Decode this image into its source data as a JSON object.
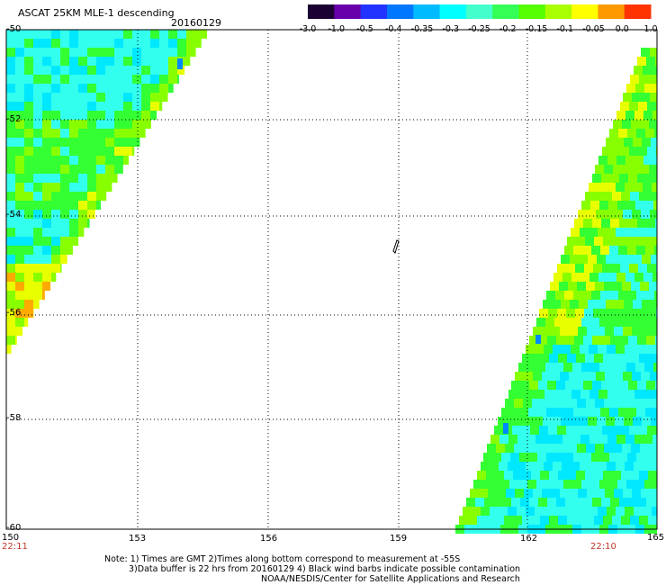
{
  "header": {
    "title": "ASCAT 25KM MLE-1 descending",
    "date": "20160129"
  },
  "colorbar": {
    "tick_labels": [
      "-3.0",
      "-1.0",
      "-0.5",
      "-0.4",
      "-0.35",
      "-0.3",
      "-0.25",
      "-0.2",
      "-0.15",
      "-0.1",
      "-0.05",
      "0.0",
      "1.0"
    ],
    "colors": [
      "#1a0033",
      "#6600aa",
      "#2233ff",
      "#0077ff",
      "#00bbff",
      "#00ffff",
      "#44ffcc",
      "#33ff55",
      "#55ff00",
      "#aaff00",
      "#ffff00",
      "#ff9900",
      "#ff3300"
    ]
  },
  "axes": {
    "y_labels": [
      "-50",
      "-52",
      "-54",
      "-56",
      "-58",
      "-60"
    ],
    "x_labels": [
      "150",
      "153",
      "156",
      "159",
      "162",
      "165"
    ],
    "times": {
      "left": "22:11",
      "right": "22:10"
    }
  },
  "notes": {
    "line1": "Note: 1) Times are GMT 2)Times along bottom correspond to measurement at -55S",
    "line2": "3)Data buffer is 22 hrs from 20160129 4) Black wind barbs indicate possible contamination",
    "line3": "NOAA/NESDIS/Center for Satellite Applications and Research"
  },
  "swath_colors": {
    "cyan": "#33ffee",
    "aqua": "#00e8ff",
    "green": "#33ff33",
    "lime": "#88ff00",
    "yellow": "#e8ff00",
    "orange": "#ffaa00",
    "blue": "#0088ff"
  }
}
